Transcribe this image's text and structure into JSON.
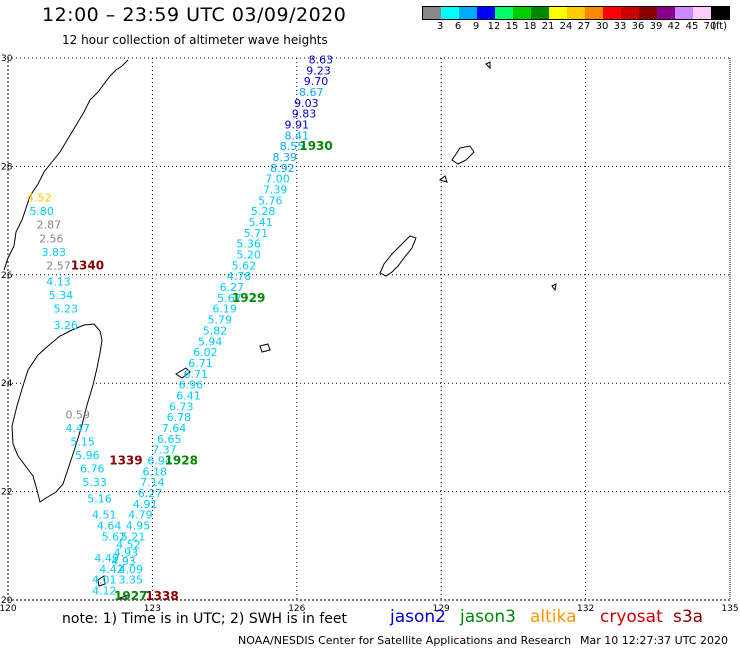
{
  "header": {
    "title": "12:00 – 23:59 UTC 03/09/2020",
    "subtitle": "12 hour collection of altimeter wave heights"
  },
  "scale": {
    "unit": "(ft)",
    "labels": [
      "3",
      "6",
      "9",
      "12",
      "15",
      "18",
      "21",
      "24",
      "27",
      "30",
      "33",
      "36",
      "39",
      "42",
      "45",
      "70"
    ],
    "colors": [
      "#888888",
      "#00ffff",
      "#00aaff",
      "#0000ff",
      "#00ff66",
      "#00cc00",
      "#008800",
      "#ffff00",
      "#ffcc00",
      "#ff8800",
      "#ff0000",
      "#cc0000",
      "#880000",
      "#880088",
      "#cc88ff",
      "#ffccff",
      "#000000"
    ]
  },
  "map": {
    "lon_labels": [
      "120",
      "123",
      "126",
      "129",
      "132",
      "135"
    ],
    "lat_labels": [
      "30",
      "28",
      "26",
      "24",
      "22",
      "20"
    ],
    "lon_range": [
      120,
      135
    ],
    "lat_range": [
      20,
      30
    ],
    "gridline_style": "dotted",
    "pass_labels": [
      {
        "text": "1930",
        "lon": 126.4,
        "lat": 28.3,
        "color": "#008800"
      },
      {
        "text": "1929",
        "lon": 125.0,
        "lat": 25.5,
        "color": "#008800"
      },
      {
        "text": "1928",
        "lon": 123.6,
        "lat": 22.5,
        "color": "#008800"
      },
      {
        "text": "1927",
        "lon": 122.55,
        "lat": 20.0,
        "color": "#008800"
      },
      {
        "text": "1340",
        "lon": 121.65,
        "lat": 26.1,
        "color": "#880000"
      },
      {
        "text": "1339",
        "lon": 122.45,
        "lat": 22.5,
        "color": "#880000"
      },
      {
        "text": "1338",
        "lon": 123.2,
        "lat": 20.0,
        "color": "#880000"
      }
    ],
    "wave_heights": [
      {
        "text": "8.63",
        "lon": 126.5,
        "lat": 29.9,
        "color": "#0000cc"
      },
      {
        "text": "9.23",
        "lon": 126.45,
        "lat": 29.7,
        "color": "#0000cc"
      },
      {
        "text": "9.70",
        "lon": 126.4,
        "lat": 29.5,
        "color": "#0000cc"
      },
      {
        "text": "8.67",
        "lon": 126.3,
        "lat": 29.3,
        "color": "#00aaff"
      },
      {
        "text": "9.03",
        "lon": 126.2,
        "lat": 29.1,
        "color": "#0000cc"
      },
      {
        "text": "9.83",
        "lon": 126.15,
        "lat": 28.9,
        "color": "#0000cc"
      },
      {
        "text": "9.91",
        "lon": 126.0,
        "lat": 28.7,
        "color": "#0000cc"
      },
      {
        "text": "8.41",
        "lon": 126.0,
        "lat": 28.5,
        "color": "#00aaff"
      },
      {
        "text": "8.55",
        "lon": 125.9,
        "lat": 28.3,
        "color": "#00aaff"
      },
      {
        "text": "8.39",
        "lon": 125.75,
        "lat": 28.1,
        "color": "#00aaff"
      },
      {
        "text": "8.92",
        "lon": 125.7,
        "lat": 27.9,
        "color": "#00aaff"
      },
      {
        "text": "7.00",
        "lon": 125.6,
        "lat": 27.7,
        "color": "#00ccff"
      },
      {
        "text": "7.39",
        "lon": 125.55,
        "lat": 27.5,
        "color": "#00ccff"
      },
      {
        "text": "5.76",
        "lon": 125.45,
        "lat": 27.3,
        "color": "#00ccff"
      },
      {
        "text": "5.28",
        "lon": 125.3,
        "lat": 27.1,
        "color": "#00ccff"
      },
      {
        "text": "5.41",
        "lon": 125.25,
        "lat": 26.9,
        "color": "#00ccff"
      },
      {
        "text": "5.71",
        "lon": 125.15,
        "lat": 26.7,
        "color": "#00ccff"
      },
      {
        "text": "5.36",
        "lon": 125.0,
        "lat": 26.5,
        "color": "#00ccff"
      },
      {
        "text": "5.20",
        "lon": 125.0,
        "lat": 26.3,
        "color": "#00ccff"
      },
      {
        "text": "5.62",
        "lon": 124.9,
        "lat": 26.1,
        "color": "#00ccff"
      },
      {
        "text": "4.78",
        "lon": 124.8,
        "lat": 25.9,
        "color": "#00ccff"
      },
      {
        "text": "6.27",
        "lon": 124.65,
        "lat": 25.7,
        "color": "#00ccff"
      },
      {
        "text": "5.67",
        "lon": 124.6,
        "lat": 25.5,
        "color": "#00ccff"
      },
      {
        "text": "6.19",
        "lon": 124.5,
        "lat": 25.3,
        "color": "#00ccff"
      },
      {
        "text": "5.79",
        "lon": 124.4,
        "lat": 25.1,
        "color": "#00ccff"
      },
      {
        "text": "5.82",
        "lon": 124.3,
        "lat": 24.9,
        "color": "#00ccff"
      },
      {
        "text": "5.94",
        "lon": 124.2,
        "lat": 24.7,
        "color": "#00ccff"
      },
      {
        "text": "6.02",
        "lon": 124.1,
        "lat": 24.5,
        "color": "#00ccff"
      },
      {
        "text": "6.71",
        "lon": 124.0,
        "lat": 24.3,
        "color": "#00ccff"
      },
      {
        "text": "6.71",
        "lon": 123.9,
        "lat": 24.1,
        "color": "#00ccff"
      },
      {
        "text": "6.96",
        "lon": 123.8,
        "lat": 23.9,
        "color": "#00ccff"
      },
      {
        "text": "6.41",
        "lon": 123.75,
        "lat": 23.7,
        "color": "#00ccff"
      },
      {
        "text": "6.73",
        "lon": 123.6,
        "lat": 23.5,
        "color": "#00ccff"
      },
      {
        "text": "6.78",
        "lon": 123.55,
        "lat": 23.3,
        "color": "#00ccff"
      },
      {
        "text": "7.64",
        "lon": 123.45,
        "lat": 23.1,
        "color": "#00ccff"
      },
      {
        "text": "6.65",
        "lon": 123.35,
        "lat": 22.9,
        "color": "#00ccff"
      },
      {
        "text": "7.37",
        "lon": 123.25,
        "lat": 22.7,
        "color": "#00ccff"
      },
      {
        "text": "6.94",
        "lon": 123.15,
        "lat": 22.5,
        "color": "#00ccff"
      },
      {
        "text": "6.18",
        "lon": 123.05,
        "lat": 22.3,
        "color": "#00ccff"
      },
      {
        "text": "7.14",
        "lon": 123.0,
        "lat": 22.1,
        "color": "#00ccff"
      },
      {
        "text": "6.27",
        "lon": 122.95,
        "lat": 21.9,
        "color": "#00ccff"
      },
      {
        "text": "4.91",
        "lon": 122.85,
        "lat": 21.7,
        "color": "#00ccff"
      },
      {
        "text": "4.79",
        "lon": 122.75,
        "lat": 21.5,
        "color": "#00ccff"
      },
      {
        "text": "4.95",
        "lon": 122.7,
        "lat": 21.3,
        "color": "#00ccff"
      },
      {
        "text": "5.21",
        "lon": 122.6,
        "lat": 21.1,
        "color": "#00ccff"
      },
      {
        "text": "4.52",
        "lon": 122.5,
        "lat": 20.95,
        "color": "#00ccff"
      },
      {
        "text": "4.93",
        "lon": 122.45,
        "lat": 20.8,
        "color": "#00ccff"
      },
      {
        "text": "4.93",
        "lon": 122.4,
        "lat": 20.65,
        "color": "#00ccff"
      },
      {
        "text": "4.09",
        "lon": 122.55,
        "lat": 20.5,
        "color": "#00ccff"
      },
      {
        "text": "3.35",
        "lon": 122.55,
        "lat": 20.3,
        "color": "#00ccff"
      },
      {
        "text": "4.12",
        "lon": 122.0,
        "lat": 20.1,
        "color": "#00ccff"
      },
      {
        "text": "4.01",
        "lon": 122.0,
        "lat": 20.3,
        "color": "#00ccff"
      },
      {
        "text": "4.42",
        "lon": 122.15,
        "lat": 20.5,
        "color": "#00ccff"
      },
      {
        "text": "4.49",
        "lon": 122.05,
        "lat": 20.7,
        "color": "#00ccff"
      },
      {
        "text": "5.62",
        "lon": 122.2,
        "lat": 21.1,
        "color": "#00ccff"
      },
      {
        "text": "4.64",
        "lon": 122.1,
        "lat": 21.3,
        "color": "#00ccff"
      },
      {
        "text": "4.51",
        "lon": 122.0,
        "lat": 21.5,
        "color": "#00ccff"
      },
      {
        "text": "5.16",
        "lon": 121.9,
        "lat": 21.8,
        "color": "#00ccff"
      },
      {
        "text": "5.33",
        "lon": 121.8,
        "lat": 22.1,
        "color": "#00ccff"
      },
      {
        "text": "6.76",
        "lon": 121.75,
        "lat": 22.35,
        "color": "#00ccff"
      },
      {
        "text": "5.96",
        "lon": 121.65,
        "lat": 22.6,
        "color": "#00ccff"
      },
      {
        "text": "5.15",
        "lon": 121.55,
        "lat": 22.85,
        "color": "#00ccff"
      },
      {
        "text": "4.47",
        "lon": 121.45,
        "lat": 23.1,
        "color": "#00ccff"
      },
      {
        "text": "0.59",
        "lon": 121.45,
        "lat": 23.35,
        "color": "#888888"
      },
      {
        "text": "3.26",
        "lon": 121.2,
        "lat": 25.0,
        "color": "#00ccff"
      },
      {
        "text": "5.23",
        "lon": 121.2,
        "lat": 25.3,
        "color": "#00ccff"
      },
      {
        "text": "5.34",
        "lon": 121.1,
        "lat": 25.55,
        "color": "#00ccff"
      },
      {
        "text": "4.13",
        "lon": 121.05,
        "lat": 25.8,
        "color": "#00ccff"
      },
      {
        "text": "2.57",
        "lon": 121.05,
        "lat": 26.1,
        "color": "#888888"
      },
      {
        "text": "3.83",
        "lon": 120.95,
        "lat": 26.35,
        "color": "#00ccff"
      },
      {
        "text": "2.56",
        "lon": 120.9,
        "lat": 26.6,
        "color": "#888888"
      },
      {
        "text": "2.87",
        "lon": 120.85,
        "lat": 26.85,
        "color": "#888888"
      },
      {
        "text": "5.80",
        "lon": 120.7,
        "lat": 27.1,
        "color": "#00ccff"
      },
      {
        "text": "4.52",
        "lon": 120.65,
        "lat": 27.35,
        "color": "#ffcc00"
      }
    ]
  },
  "footer": {
    "note": "note: 1) Time is in UTC; 2) SWH is in feet",
    "satellites": [
      {
        "name": "jason2",
        "color": "#0000cc"
      },
      {
        "name": "jason3",
        "color": "#008800"
      },
      {
        "name": "altika",
        "color": "#ff9900"
      },
      {
        "name": "cryosat",
        "color": "#cc0000"
      },
      {
        "name": "s3a",
        "color": "#880000"
      }
    ],
    "credit": "NOAA/NESDIS Center for Satellite Applications and Research",
    "generated": "Mar 10 12:27:37 UTC 2020"
  }
}
